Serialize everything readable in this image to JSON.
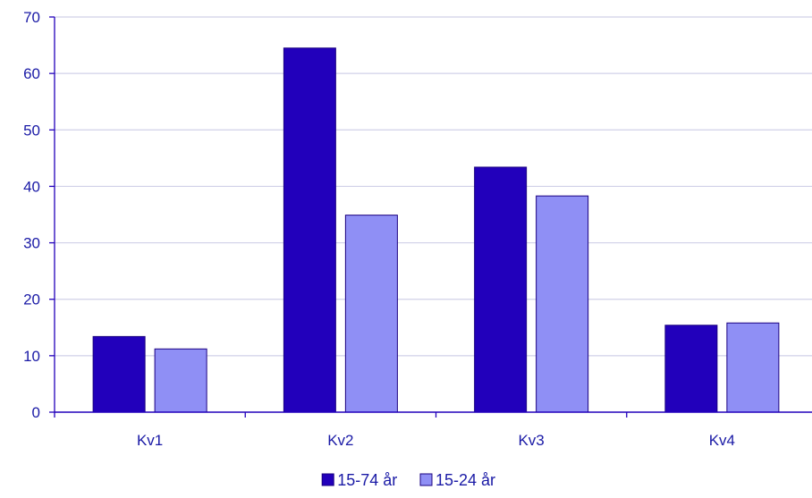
{
  "chart_data": {
    "type": "bar",
    "categories": [
      "Kv1",
      "Kv2",
      "Kv3",
      "Kv4"
    ],
    "series": [
      {
        "name": "15-74 år",
        "values": [
          13.4,
          64.5,
          43.4,
          15.4
        ],
        "color": "#2200bb"
      },
      {
        "name": "15-24 år",
        "values": [
          11.2,
          34.9,
          38.3,
          15.8
        ],
        "color": "#8f8ff5"
      }
    ],
    "ylim": [
      0,
      70
    ],
    "yticks": [
      0,
      10,
      20,
      30,
      40,
      50,
      60,
      70
    ],
    "grid": true,
    "legend_position": "bottom-center",
    "axis_color": "#2200bb",
    "grid_color": "#d0d0e8",
    "text_color": "#1a1aa6"
  }
}
